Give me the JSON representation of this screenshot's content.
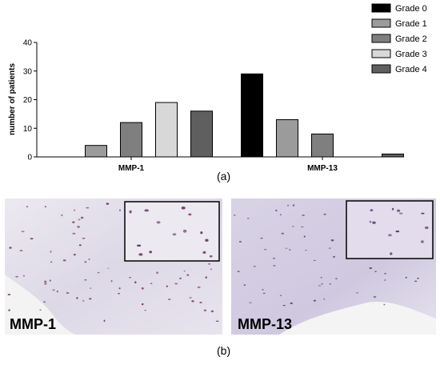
{
  "chart_data": {
    "type": "bar",
    "categories": [
      "MMP-1",
      "MMP-13"
    ],
    "series": [
      {
        "name": "Grade 0",
        "values": [
          0,
          29
        ],
        "color": "#000000"
      },
      {
        "name": "Grade 1",
        "values": [
          4,
          13
        ],
        "color": "#9b9b9b"
      },
      {
        "name": "Grade 2",
        "values": [
          12,
          8
        ],
        "color": "#7f7f7f"
      },
      {
        "name": "Grade 3",
        "values": [
          19,
          0
        ],
        "color": "#d8d8d8"
      },
      {
        "name": "Grade 4",
        "values": [
          16,
          1
        ],
        "color": "#5f5f5f"
      }
    ],
    "ylabel": "number of patients",
    "ylim": [
      0,
      40
    ],
    "yticks": [
      0,
      10,
      20,
      30,
      40
    ],
    "legend_position": "top-right",
    "grid": false
  },
  "captions": {
    "panel_a": "(a)",
    "panel_b": "(b)"
  },
  "micrographs": [
    {
      "label": "MMP-1",
      "tint": "#e6e3ee"
    },
    {
      "label": "MMP-13",
      "tint": "#dcd7e8"
    }
  ]
}
